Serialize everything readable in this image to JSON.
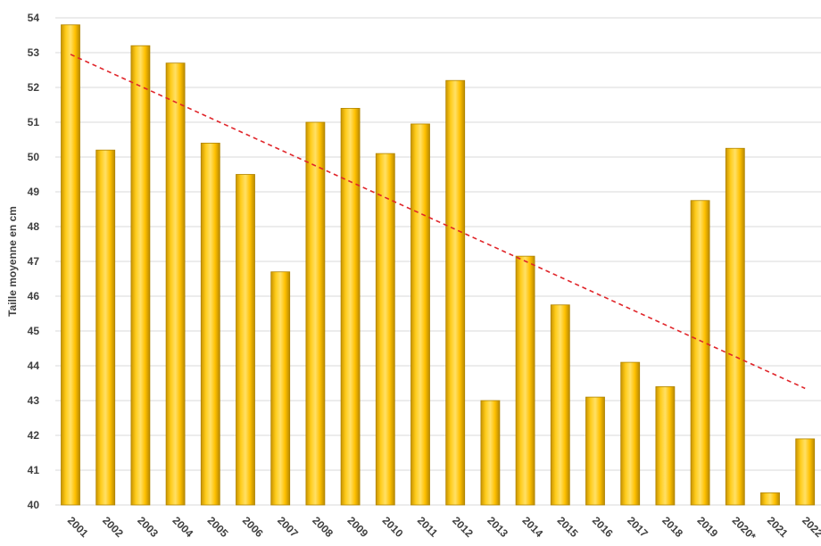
{
  "chart_data": {
    "type": "bar",
    "title": "",
    "xlabel": "",
    "ylabel": "Taille moyenne en cm",
    "ylim": [
      40,
      54
    ],
    "yticks": [
      40,
      41,
      42,
      43,
      44,
      45,
      46,
      47,
      48,
      49,
      50,
      51,
      52,
      53,
      54
    ],
    "grid": true,
    "categories": [
      "2001",
      "2002",
      "2003",
      "2004",
      "2005",
      "2006",
      "2007",
      "2008",
      "2009",
      "2010",
      "2011",
      "2012",
      "2013",
      "2014",
      "2015",
      "2016",
      "2017",
      "2018",
      "2019",
      "2020*",
      "2021",
      "2022"
    ],
    "values": [
      53.8,
      50.2,
      53.2,
      52.7,
      50.4,
      49.5,
      46.7,
      51.0,
      51.4,
      50.1,
      50.95,
      52.2,
      43.0,
      47.15,
      45.75,
      43.1,
      44.1,
      43.4,
      48.75,
      50.25,
      40.35,
      41.9
    ],
    "trendline": {
      "type": "linear",
      "style": "dashed",
      "color": "#e0252a",
      "start": 52.95,
      "end": 43.35
    },
    "colors": {
      "bar": "#ffc000",
      "bar_edge": "#b08400",
      "grid": "#d9d9d9",
      "tick_text": "#404040"
    }
  }
}
